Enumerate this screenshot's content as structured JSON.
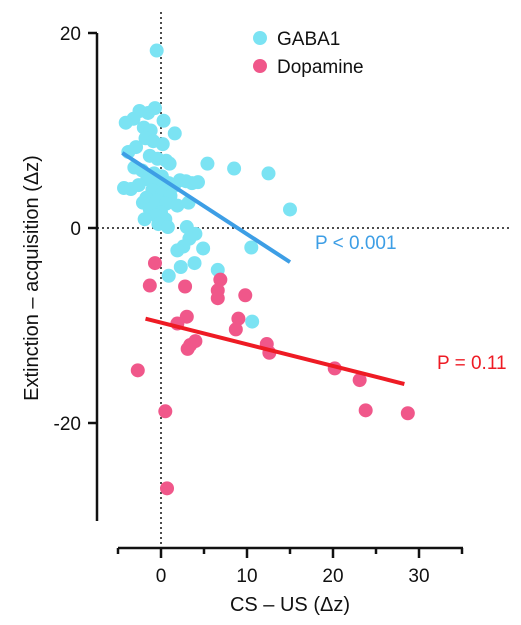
{
  "chart_data": {
    "type": "scatter",
    "xlabel": "CS – US (Δz)",
    "ylabel": "Extinction – acquisition (Δz)",
    "xlim": [
      -5,
      35
    ],
    "ylim": [
      -30,
      20
    ],
    "x_ticks": [
      0,
      10,
      20,
      30
    ],
    "y_ticks": [
      20,
      0,
      -20
    ],
    "zero_reference_lines": true,
    "legend_position": "top-center",
    "series": [
      {
        "name": "GABA1",
        "color": "#7be3f3",
        "points": [
          [
            -0.5,
            18.2
          ],
          [
            -1.5,
            11.8
          ],
          [
            -0.7,
            12.3
          ],
          [
            0.3,
            11.0
          ],
          [
            -2.5,
            12.0
          ],
          [
            -3.2,
            11.2
          ],
          [
            -4.1,
            10.8
          ],
          [
            -2.0,
            10.3
          ],
          [
            -1.2,
            10.0
          ],
          [
            1.6,
            9.7
          ],
          [
            -1.8,
            9.2
          ],
          [
            -0.9,
            8.9
          ],
          [
            0.2,
            8.6
          ],
          [
            -2.9,
            8.3
          ],
          [
            -3.8,
            7.8
          ],
          [
            -1.3,
            7.4
          ],
          [
            -0.4,
            7.1
          ],
          [
            0.6,
            6.9
          ],
          [
            1.0,
            6.6
          ],
          [
            5.4,
            6.6
          ],
          [
            8.5,
            6.1
          ],
          [
            12.5,
            5.6
          ],
          [
            -3.1,
            6.2
          ],
          [
            -2.2,
            5.9
          ],
          [
            -0.8,
            5.6
          ],
          [
            0.1,
            5.3
          ],
          [
            -1.6,
            5.0
          ],
          [
            -0.2,
            4.8
          ],
          [
            0.9,
            4.6
          ],
          [
            -2.6,
            4.4
          ],
          [
            1.5,
            4.3
          ],
          [
            2.2,
            4.9
          ],
          [
            2.9,
            4.8
          ],
          [
            3.6,
            4.6
          ],
          [
            4.3,
            4.7
          ],
          [
            -4.3,
            4.1
          ],
          [
            -3.5,
            4.0
          ],
          [
            -1.0,
            3.9
          ],
          [
            0.2,
            3.6
          ],
          [
            1.1,
            3.3
          ],
          [
            -1.7,
            3.1
          ],
          [
            -0.5,
            2.8
          ],
          [
            0.6,
            2.5
          ],
          [
            -2.1,
            2.6
          ],
          [
            1.9,
            2.3
          ],
          [
            3.2,
            2.6
          ],
          [
            -1.3,
            1.9
          ],
          [
            0.0,
            1.6
          ],
          [
            -0.6,
            1.3
          ],
          [
            -1.9,
            0.9
          ],
          [
            0.5,
            0.9
          ],
          [
            -0.3,
            0.4
          ],
          [
            0.8,
            0.1
          ],
          [
            15.0,
            1.9
          ],
          [
            3.0,
            0.1
          ],
          [
            4.0,
            -0.6
          ],
          [
            3.3,
            -1.1
          ],
          [
            2.6,
            -1.9
          ],
          [
            1.9,
            -2.3
          ],
          [
            4.9,
            -2.1
          ],
          [
            10.5,
            -2.0
          ],
          [
            6.6,
            -4.3
          ],
          [
            3.9,
            -3.6
          ],
          [
            2.3,
            -4.0
          ],
          [
            0.9,
            -4.9
          ],
          [
            10.6,
            -9.6
          ]
        ],
        "fit_line": {
          "x": [
            -4.5,
            15.0
          ],
          "y": [
            7.7,
            -3.5
          ]
        },
        "p_label": "P < 0.001",
        "p_color": "#3d9ee5"
      },
      {
        "name": "Dopamine",
        "color": "#f0578a",
        "points": [
          [
            -0.7,
            -3.6
          ],
          [
            -1.3,
            -5.9
          ],
          [
            2.8,
            -6.0
          ],
          [
            6.9,
            -5.3
          ],
          [
            6.6,
            -6.4
          ],
          [
            6.6,
            -7.2
          ],
          [
            9.8,
            -6.9
          ],
          [
            9.0,
            -9.3
          ],
          [
            8.7,
            -10.4
          ],
          [
            3.0,
            -9.1
          ],
          [
            1.9,
            -9.8
          ],
          [
            4.0,
            -11.6
          ],
          [
            3.4,
            -12.0
          ],
          [
            3.1,
            -12.4
          ],
          [
            12.3,
            -11.9
          ],
          [
            12.6,
            -12.8
          ],
          [
            -2.7,
            -14.6
          ],
          [
            20.2,
            -14.4
          ],
          [
            23.1,
            -15.6
          ],
          [
            23.8,
            -18.7
          ],
          [
            28.7,
            -19.0
          ],
          [
            0.5,
            -18.8
          ],
          [
            0.7,
            -26.7
          ]
        ],
        "fit_line": {
          "x": [
            -1.8,
            28.3
          ],
          "y": [
            -9.3,
            -16.0
          ]
        },
        "p_label": "P = 0.11",
        "p_color": "#ee1b24"
      }
    ]
  }
}
